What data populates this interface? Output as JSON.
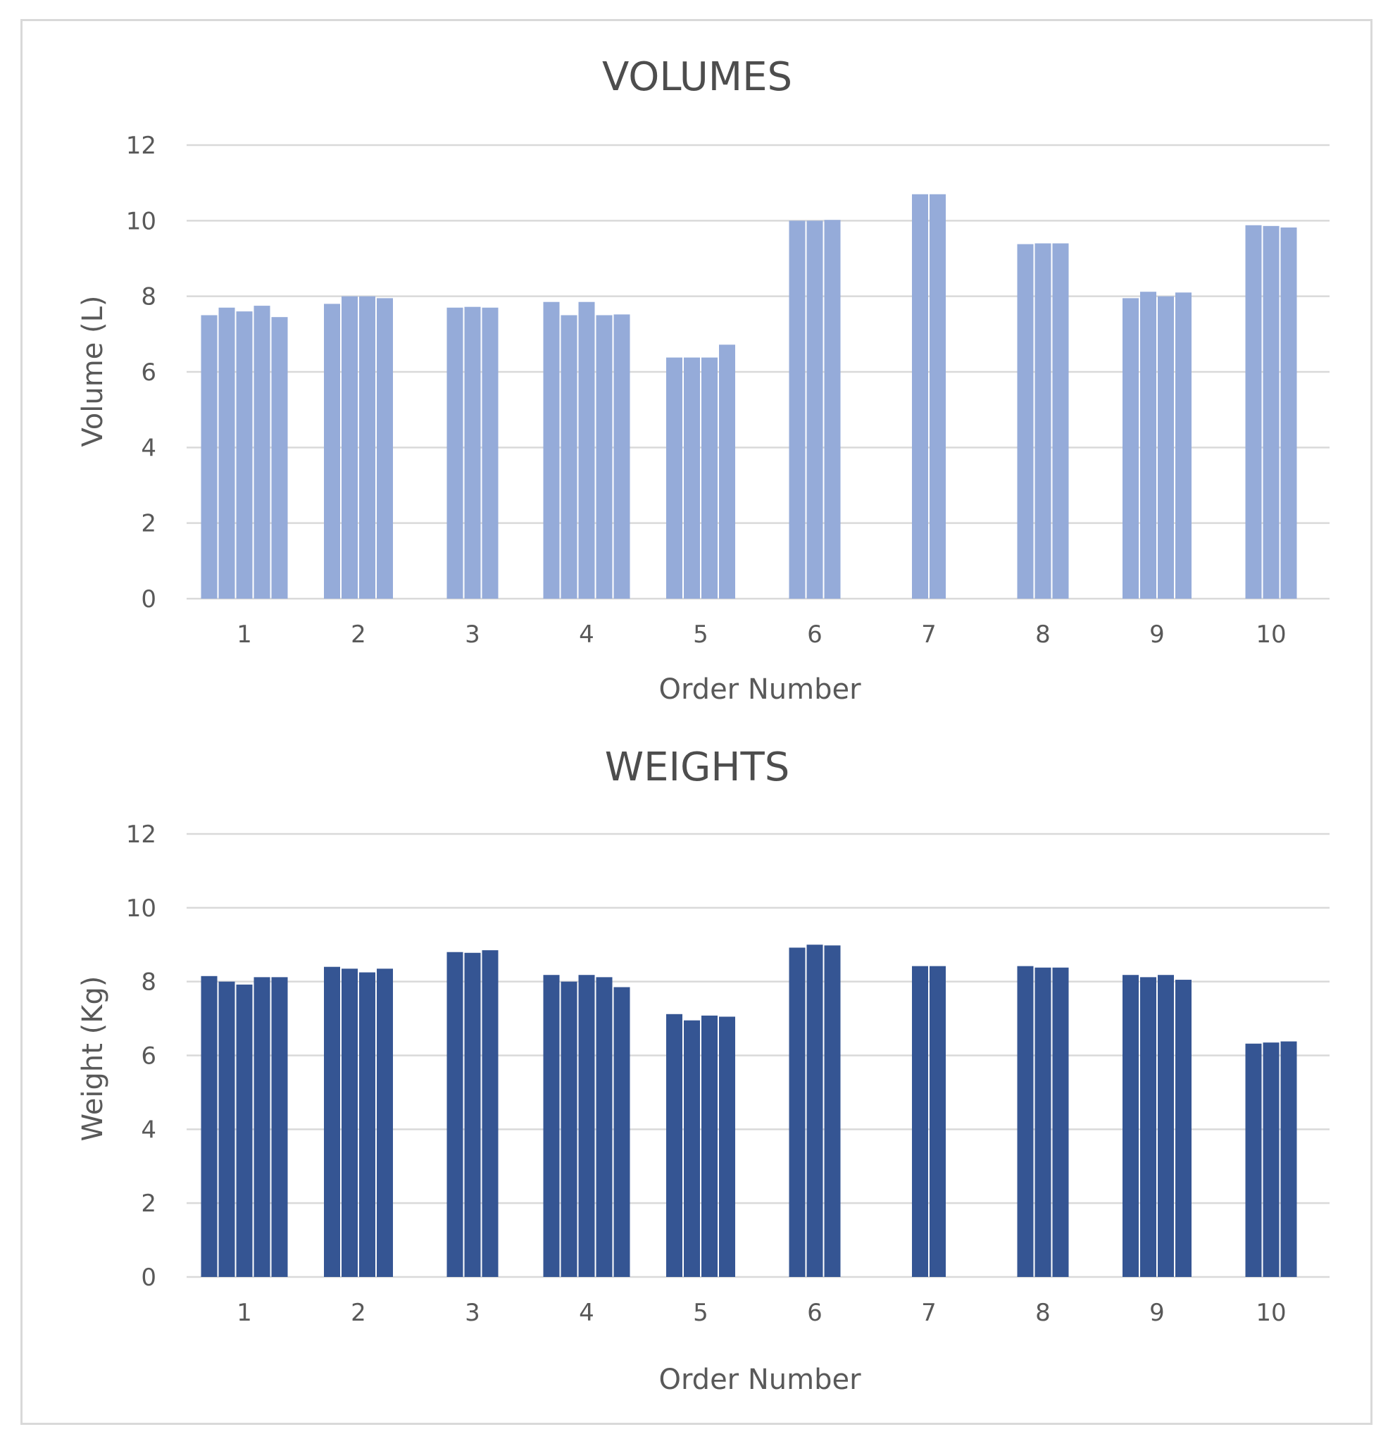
{
  "chart_data": [
    {
      "type": "bar",
      "title": "VOLUMES",
      "xlabel": "Order Number",
      "ylabel": "Volume (L)",
      "ylim": [
        0,
        12
      ],
      "yticks": [
        "0",
        "2",
        "4",
        "6",
        "8",
        "10",
        "12"
      ],
      "grid": true,
      "color": "#95abd9",
      "categories": [
        "1",
        "2",
        "3",
        "4",
        "5",
        "6",
        "7",
        "8",
        "9",
        "10"
      ],
      "groups": [
        {
          "category": "1",
          "values": [
            7.5,
            7.7,
            7.6,
            7.75,
            7.45
          ]
        },
        {
          "category": "2",
          "values": [
            7.8,
            8.0,
            8.0,
            7.95
          ]
        },
        {
          "category": "3",
          "values": [
            7.7,
            7.72,
            7.7
          ]
        },
        {
          "category": "4",
          "values": [
            7.85,
            7.5,
            7.85,
            7.5,
            7.52
          ]
        },
        {
          "category": "5",
          "values": [
            6.38,
            6.38,
            6.38,
            6.72
          ]
        },
        {
          "category": "6",
          "values": [
            10.0,
            10.0,
            10.02
          ]
        },
        {
          "category": "7",
          "values": [
            10.7,
            10.7
          ]
        },
        {
          "category": "8",
          "values": [
            9.38,
            9.4,
            9.4
          ]
        },
        {
          "category": "9",
          "values": [
            7.95,
            8.12,
            8.0,
            8.1
          ]
        },
        {
          "category": "10",
          "values": [
            9.88,
            9.86,
            9.82
          ]
        }
      ]
    },
    {
      "type": "bar",
      "title": "WEIGHTS",
      "xlabel": "Order Number",
      "ylabel": "Weight (Kg)",
      "ylim": [
        0,
        12
      ],
      "yticks": [
        "0",
        "2",
        "4",
        "6",
        "8",
        "10",
        "12"
      ],
      "grid": true,
      "color": "#355593",
      "categories": [
        "1",
        "2",
        "3",
        "4",
        "5",
        "6",
        "7",
        "8",
        "9",
        "10"
      ],
      "groups": [
        {
          "category": "1",
          "values": [
            8.15,
            8.0,
            7.92,
            8.12,
            8.12
          ]
        },
        {
          "category": "2",
          "values": [
            8.4,
            8.35,
            8.25,
            8.35
          ]
        },
        {
          "category": "3",
          "values": [
            8.8,
            8.78,
            8.85
          ]
        },
        {
          "category": "4",
          "values": [
            8.18,
            8.0,
            8.18,
            8.12,
            7.85
          ]
        },
        {
          "category": "5",
          "values": [
            7.12,
            6.95,
            7.08,
            7.05
          ]
        },
        {
          "category": "6",
          "values": [
            8.92,
            9.0,
            8.98
          ]
        },
        {
          "category": "7",
          "values": [
            8.42,
            8.42
          ]
        },
        {
          "category": "8",
          "values": [
            8.42,
            8.38,
            8.38
          ]
        },
        {
          "category": "9",
          "values": [
            8.18,
            8.12,
            8.18,
            8.05
          ]
        },
        {
          "category": "10",
          "values": [
            6.32,
            6.35,
            6.38
          ]
        }
      ]
    }
  ]
}
